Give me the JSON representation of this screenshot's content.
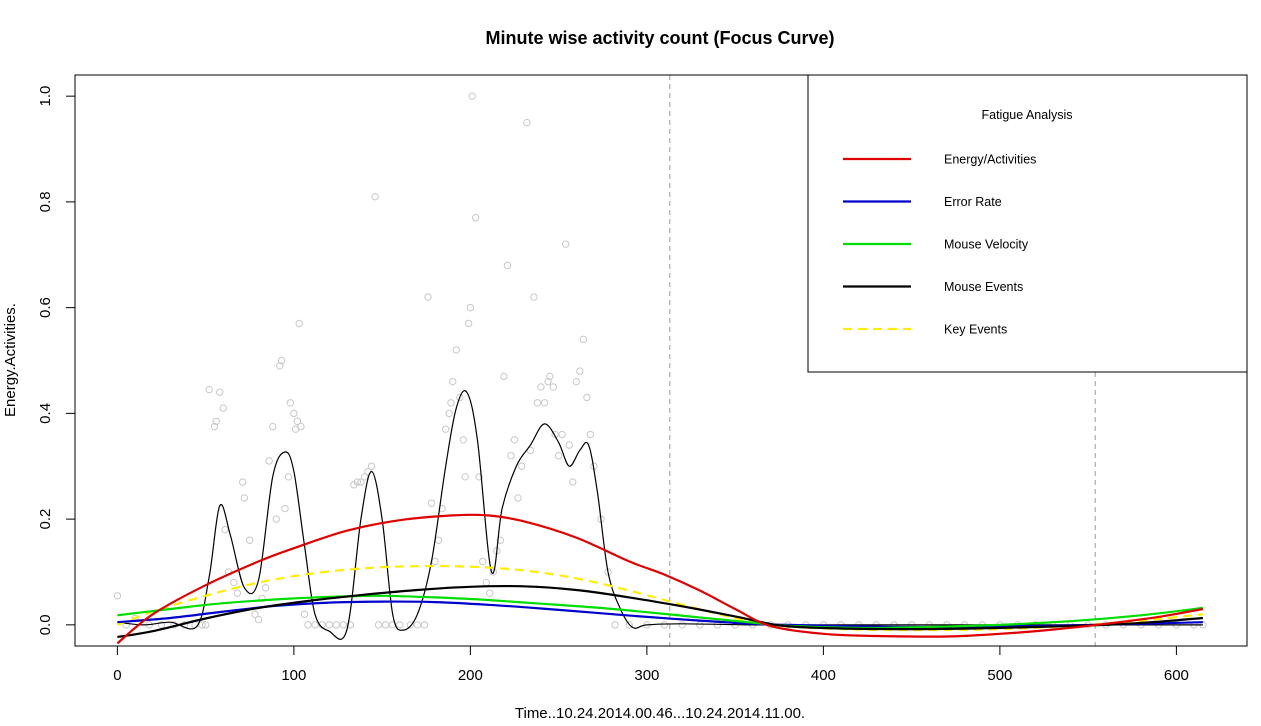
{
  "chart_data": {
    "type": "line",
    "title": "Minute wise activity count (Focus Curve)",
    "xlabel": "Time..10.24.2014.00.46...10.24.2014.11.00.",
    "ylabel": "Energy.Activities.",
    "xlim": [
      -24,
      640
    ],
    "ylim": [
      -0.04,
      1.04
    ],
    "x_ticks": [
      0,
      100,
      200,
      300,
      400,
      500,
      600
    ],
    "y_ticks": [
      0.0,
      0.2,
      0.4,
      0.6,
      0.8,
      1.0
    ],
    "x_tick_labels": [
      "0",
      "100",
      "200",
      "300",
      "400",
      "500",
      "600"
    ],
    "y_tick_labels": [
      "0.0",
      "0.2",
      "0.4",
      "0.6",
      "0.8",
      "1.0"
    ],
    "grid": false,
    "vertical_lines": [
      313,
      554
    ],
    "legend": {
      "title": "Fatigue Analysis",
      "placement": "top-right",
      "entries": [
        {
          "label": "Energy/Activities",
          "color": "#e00000",
          "dash": "solid"
        },
        {
          "label": "Error Rate",
          "color": "#0000cc",
          "dash": "solid"
        },
        {
          "label": "Mouse Velocity",
          "color": "#00dd00",
          "dash": "solid"
        },
        {
          "label": "Mouse Events",
          "color": "#000000",
          "dash": "solid"
        },
        {
          "label": "Key Events",
          "color": "#ffee00",
          "dash": "dashed"
        }
      ]
    },
    "series": [
      {
        "key": "energy",
        "color": "#e00000",
        "width": 2.2,
        "dash": "solid",
        "x": [
          0,
          20,
          50,
          80,
          100,
          130,
          160,
          190,
          210,
          230,
          260,
          290,
          310,
          330,
          350,
          370,
          400,
          430,
          470,
          500,
          530,
          560,
          590,
          615
        ],
        "y": [
          -0.035,
          0.02,
          0.075,
          0.12,
          0.145,
          0.178,
          0.198,
          0.207,
          0.207,
          0.196,
          0.165,
          0.12,
          0.095,
          0.065,
          0.03,
          -0.002,
          -0.017,
          -0.021,
          -0.022,
          -0.017,
          -0.009,
          0.002,
          0.015,
          0.03
        ]
      },
      {
        "key": "error_rate",
        "color": "#0000cc",
        "width": 2.2,
        "dash": "solid",
        "x": [
          0,
          30,
          60,
          90,
          120,
          150,
          180,
          210,
          240,
          270,
          300,
          330,
          360,
          380,
          420,
          460,
          500,
          540,
          580,
          615
        ],
        "y": [
          0.005,
          0.013,
          0.025,
          0.036,
          0.042,
          0.044,
          0.043,
          0.038,
          0.031,
          0.023,
          0.015,
          0.008,
          0.002,
          0.0,
          -0.003,
          -0.004,
          -0.003,
          -0.001,
          0.002,
          0.005
        ]
      },
      {
        "key": "mouse_velocity",
        "color": "#00dd00",
        "width": 2.2,
        "dash": "solid",
        "x": [
          0,
          30,
          60,
          100,
          130,
          150,
          180,
          210,
          240,
          270,
          300,
          330,
          360,
          380,
          420,
          460,
          500,
          540,
          580,
          615
        ],
        "y": [
          0.018,
          0.03,
          0.041,
          0.05,
          0.054,
          0.055,
          0.052,
          0.047,
          0.04,
          0.033,
          0.024,
          0.014,
          0.004,
          -0.002,
          -0.006,
          -0.004,
          0.0,
          0.007,
          0.018,
          0.032
        ]
      },
      {
        "key": "mouse_events",
        "color": "#000000",
        "width": 2.2,
        "dash": "solid",
        "x": [
          0,
          20,
          50,
          80,
          110,
          140,
          170,
          200,
          230,
          260,
          290,
          320,
          350,
          375,
          400,
          440,
          480,
          520,
          560,
          590,
          615
        ],
        "y": [
          -0.023,
          -0.012,
          0.012,
          0.032,
          0.046,
          0.057,
          0.066,
          0.072,
          0.073,
          0.066,
          0.052,
          0.035,
          0.016,
          -0.001,
          -0.006,
          -0.008,
          -0.007,
          -0.004,
          0.0,
          0.006,
          0.013
        ]
      },
      {
        "key": "key_events",
        "color": "#ffee00",
        "width": 2.2,
        "dash": "dashed",
        "x": [
          0,
          20,
          50,
          80,
          110,
          140,
          170,
          200,
          230,
          260,
          290,
          320,
          350,
          375,
          410,
          450,
          500,
          540,
          580,
          615
        ],
        "y": [
          0.0,
          0.025,
          0.055,
          0.08,
          0.097,
          0.107,
          0.111,
          0.11,
          0.103,
          0.088,
          0.065,
          0.038,
          0.013,
          -0.001,
          -0.008,
          -0.01,
          -0.008,
          -0.002,
          0.008,
          0.02
        ]
      },
      {
        "key": "raw_smooth",
        "color": "#000000",
        "width": 1.2,
        "dash": "solid",
        "x": [
          0,
          15,
          30,
          45,
          52,
          58,
          64,
          72,
          80,
          88,
          95,
          100,
          106,
          112,
          120,
          130,
          138,
          144,
          150,
          156,
          162,
          170,
          178,
          186,
          192,
          198,
          204,
          212,
          218,
          226,
          234,
          242,
          250,
          256,
          262,
          267,
          272,
          278,
          285,
          292,
          300,
          320,
          360,
          400,
          450,
          500,
          560,
          615
        ],
        "y": [
          0.005,
          0.0,
          0.005,
          -0.003,
          0.09,
          0.225,
          0.17,
          0.07,
          0.085,
          0.28,
          0.327,
          0.29,
          0.15,
          0.02,
          -0.012,
          -0.01,
          0.2,
          0.29,
          0.2,
          0.02,
          -0.01,
          0.02,
          0.12,
          0.3,
          0.41,
          0.44,
          0.35,
          0.1,
          0.22,
          0.3,
          0.34,
          0.38,
          0.345,
          0.3,
          0.33,
          0.34,
          0.25,
          0.1,
          0.03,
          -0.005,
          0.0,
          0.002,
          0.0,
          0.0,
          0.0,
          0.0,
          0.0,
          0.0
        ]
      }
    ],
    "scatter": {
      "color": "#c8c8c8",
      "points": [
        [
          0,
          0.055
        ],
        [
          5,
          0.0
        ],
        [
          10,
          0.012
        ],
        [
          18,
          0.0
        ],
        [
          25,
          0.0
        ],
        [
          32,
          0.0
        ],
        [
          38,
          0.0
        ],
        [
          44,
          0.0
        ],
        [
          48,
          0.0
        ],
        [
          50,
          0.0
        ],
        [
          52,
          0.445
        ],
        [
          55,
          0.375
        ],
        [
          56,
          0.385
        ],
        [
          58,
          0.44
        ],
        [
          60,
          0.41
        ],
        [
          61,
          0.18
        ],
        [
          63,
          0.1
        ],
        [
          66,
          0.08
        ],
        [
          68,
          0.06
        ],
        [
          71,
          0.27
        ],
        [
          72,
          0.24
        ],
        [
          75,
          0.16
        ],
        [
          78,
          0.02
        ],
        [
          80,
          0.01
        ],
        [
          82,
          0.05
        ],
        [
          84,
          0.07
        ],
        [
          86,
          0.31
        ],
        [
          88,
          0.375
        ],
        [
          90,
          0.2
        ],
        [
          92,
          0.49
        ],
        [
          93,
          0.5
        ],
        [
          95,
          0.22
        ],
        [
          97,
          0.28
        ],
        [
          98,
          0.42
        ],
        [
          100,
          0.4
        ],
        [
          101,
          0.37
        ],
        [
          102,
          0.385
        ],
        [
          103,
          0.57
        ],
        [
          104,
          0.375
        ],
        [
          106,
          0.02
        ],
        [
          108,
          0.0
        ],
        [
          112,
          0.0
        ],
        [
          116,
          0.0
        ],
        [
          120,
          0.0
        ],
        [
          124,
          0.0
        ],
        [
          128,
          0.0
        ],
        [
          132,
          0.0
        ],
        [
          134,
          0.265
        ],
        [
          136,
          0.27
        ],
        [
          138,
          0.27
        ],
        [
          140,
          0.28
        ],
        [
          142,
          0.29
        ],
        [
          144,
          0.3
        ],
        [
          146,
          0.81
        ],
        [
          148,
          0.0
        ],
        [
          152,
          0.0
        ],
        [
          156,
          0.0
        ],
        [
          160,
          0.0
        ],
        [
          166,
          0.0
        ],
        [
          170,
          0.0
        ],
        [
          174,
          0.0
        ],
        [
          176,
          0.62
        ],
        [
          178,
          0.23
        ],
        [
          180,
          0.12
        ],
        [
          182,
          0.16
        ],
        [
          184,
          0.22
        ],
        [
          186,
          0.37
        ],
        [
          188,
          0.4
        ],
        [
          189,
          0.42
        ],
        [
          190,
          0.46
        ],
        [
          192,
          0.52
        ],
        [
          194,
          0.43
        ],
        [
          196,
          0.35
        ],
        [
          197,
          0.28
        ],
        [
          199,
          0.57
        ],
        [
          200,
          0.6
        ],
        [
          201,
          1.0
        ],
        [
          203,
          0.77
        ],
        [
          205,
          0.28
        ],
        [
          207,
          0.12
        ],
        [
          209,
          0.08
        ],
        [
          211,
          0.06
        ],
        [
          213,
          0.1
        ],
        [
          215,
          0.14
        ],
        [
          217,
          0.16
        ],
        [
          219,
          0.47
        ],
        [
          221,
          0.68
        ],
        [
          223,
          0.32
        ],
        [
          225,
          0.35
        ],
        [
          227,
          0.24
        ],
        [
          229,
          0.3
        ],
        [
          232,
          0.95
        ],
        [
          234,
          0.33
        ],
        [
          236,
          0.62
        ],
        [
          238,
          0.42
        ],
        [
          240,
          0.45
        ],
        [
          242,
          0.42
        ],
        [
          244,
          0.46
        ],
        [
          245,
          0.47
        ],
        [
          247,
          0.45
        ],
        [
          248,
          0.36
        ],
        [
          250,
          0.32
        ],
        [
          252,
          0.36
        ],
        [
          254,
          0.72
        ],
        [
          256,
          0.34
        ],
        [
          258,
          0.27
        ],
        [
          260,
          0.46
        ],
        [
          262,
          0.48
        ],
        [
          264,
          0.54
        ],
        [
          266,
          0.43
        ],
        [
          268,
          0.36
        ],
        [
          270,
          0.3
        ],
        [
          274,
          0.2
        ],
        [
          278,
          0.1
        ],
        [
          282,
          0.0
        ],
        [
          290,
          0.0
        ],
        [
          300,
          0.0
        ],
        [
          310,
          0.0
        ],
        [
          320,
          0.0
        ],
        [
          330,
          0.0
        ],
        [
          340,
          0.0
        ],
        [
          350,
          0.0
        ],
        [
          360,
          0.0
        ],
        [
          370,
          0.0
        ],
        [
          380,
          0.0
        ],
        [
          390,
          0.0
        ],
        [
          400,
          0.0
        ],
        [
          410,
          0.0
        ],
        [
          420,
          0.0
        ],
        [
          430,
          0.0
        ],
        [
          440,
          0.0
        ],
        [
          450,
          0.0
        ],
        [
          460,
          0.0
        ],
        [
          470,
          0.0
        ],
        [
          480,
          0.0
        ],
        [
          490,
          0.0
        ],
        [
          500,
          0.0
        ],
        [
          510,
          0.0
        ],
        [
          520,
          0.0
        ],
        [
          530,
          0.0
        ],
        [
          540,
          0.0
        ],
        [
          550,
          0.0
        ],
        [
          560,
          0.0
        ],
        [
          570,
          0.0
        ],
        [
          580,
          0.0
        ],
        [
          590,
          0.0
        ],
        [
          600,
          0.0
        ],
        [
          610,
          0.0
        ],
        [
          615,
          0.0
        ]
      ]
    }
  }
}
